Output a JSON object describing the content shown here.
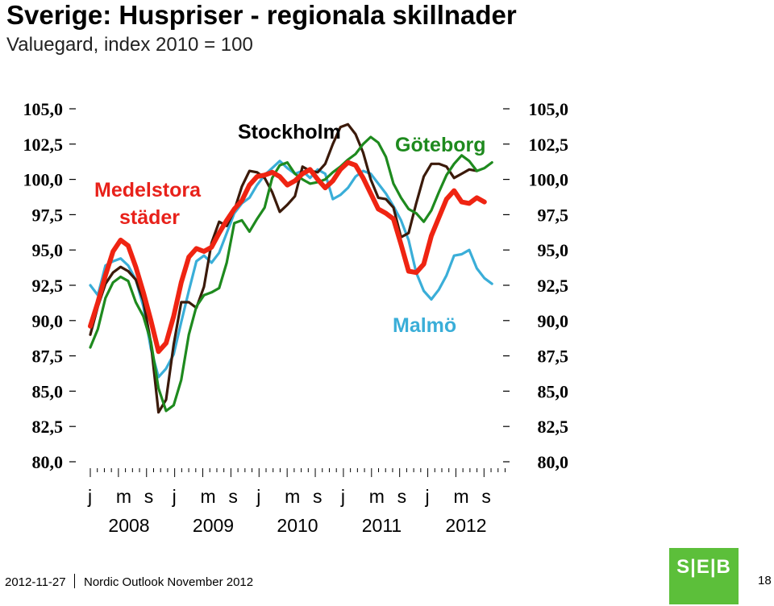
{
  "header": {
    "title": "Sverige: Huspriser - regionala skillnader",
    "subtitle": "Valuegard, index 2010 = 100"
  },
  "footer": {
    "date": "2012-11-27",
    "publication": "Nordic Outlook November 2012",
    "logo_text": "S|E|B",
    "page_number": "18"
  },
  "chart_data": {
    "type": "line",
    "ylim": [
      80,
      105
    ],
    "yticks": [
      "80,0",
      "82,5",
      "85,0",
      "87,5",
      "90,0",
      "92,5",
      "95,0",
      "97,5",
      "100,0",
      "102,5",
      "105,0"
    ],
    "month_labels": [
      "j",
      "m",
      "s",
      "j",
      "m",
      "s",
      "j",
      "m",
      "s",
      "j",
      "m",
      "s",
      "j",
      "m",
      "s"
    ],
    "year_labels": [
      "2008",
      "2009",
      "2010",
      "2011",
      "2012"
    ],
    "x_start": "2008-01",
    "series_labels": [
      {
        "text": "Stockholm",
        "color": "#000000"
      },
      {
        "text": "Göteborg",
        "color": "#1e8a1e"
      },
      {
        "text": "Medelstora",
        "color": "#e8211a"
      },
      {
        "text": "städer",
        "color": "#e8211a"
      },
      {
        "text": "Malmö",
        "color": "#3aaed8"
      }
    ],
    "series": [
      {
        "color": "#3aaed8",
        "values": [
          92.5,
          91.8,
          93.9,
          94.2,
          94.4,
          93.9,
          92.9,
          91.0,
          88.0,
          86.0,
          86.6,
          87.6,
          89.9,
          92.1,
          94.2,
          94.6,
          94.1,
          94.8,
          96.2,
          97.6,
          98.3,
          98.7,
          99.6,
          100.3,
          100.8,
          101.3,
          100.8,
          100.4,
          100.6,
          100.1,
          100.7,
          100.4,
          98.6,
          98.9,
          99.4,
          100.2,
          100.6,
          100.4,
          99.7,
          99.0,
          98.1,
          97.1,
          95.7,
          93.4,
          92.1,
          91.5,
          92.2,
          93.2,
          94.6,
          94.7,
          95.0,
          93.7,
          93.0,
          92.6
        ]
      },
      {
        "color": "#3b1a0a",
        "values": [
          89.0,
          91.0,
          92.6,
          93.4,
          93.8,
          93.5,
          92.9,
          91.4,
          88.4,
          83.5,
          84.4,
          88.3,
          91.3,
          91.3,
          90.9,
          92.4,
          95.5,
          97.0,
          96.7,
          97.8,
          99.5,
          100.6,
          100.5,
          100.1,
          99.1,
          97.7,
          98.2,
          98.8,
          100.9,
          100.6,
          100.5,
          101.1,
          102.5,
          103.7,
          103.9,
          103.2,
          101.9,
          100.0,
          98.7,
          98.6,
          98.0,
          95.9,
          96.2,
          98.3,
          100.2,
          101.1,
          101.1,
          100.9,
          100.1,
          100.4,
          100.7,
          100.6
        ]
      },
      {
        "color": "#1e8a1e",
        "values": [
          88.1,
          89.4,
          91.6,
          92.7,
          93.1,
          92.8,
          91.3,
          90.3,
          88.5,
          85.2,
          83.6,
          84.0,
          85.8,
          89.0,
          91.0,
          91.8,
          92.0,
          92.3,
          94.1,
          96.9,
          97.1,
          96.3,
          97.2,
          98.0,
          100.1,
          101.0,
          101.2,
          100.4,
          100.0,
          99.7,
          99.8,
          100.0,
          100.5,
          100.9,
          101.4,
          101.8,
          102.5,
          103.0,
          102.6,
          101.6,
          99.7,
          98.7,
          97.9,
          97.6,
          97.0,
          97.8,
          99.1,
          100.3,
          101.1,
          101.7,
          101.3,
          100.6,
          100.8,
          101.2
        ]
      },
      {
        "color": "#ef2412",
        "values": [
          89.6,
          91.3,
          93.2,
          94.9,
          95.7,
          95.3,
          93.8,
          92.0,
          90.0,
          87.8,
          88.4,
          90.3,
          92.7,
          94.5,
          95.1,
          94.9,
          95.2,
          96.2,
          97.1,
          97.9,
          98.5,
          99.6,
          100.2,
          100.3,
          100.5,
          100.2,
          99.6,
          99.9,
          100.4,
          100.7,
          100.0,
          99.4,
          99.9,
          100.7,
          101.2,
          101.0,
          100.1,
          99.0,
          97.9,
          97.6,
          97.2,
          95.4,
          93.5,
          93.4,
          94.0,
          96.0,
          97.3,
          98.6,
          99.2,
          98.4,
          98.3,
          98.7,
          98.4
        ]
      }
    ]
  }
}
